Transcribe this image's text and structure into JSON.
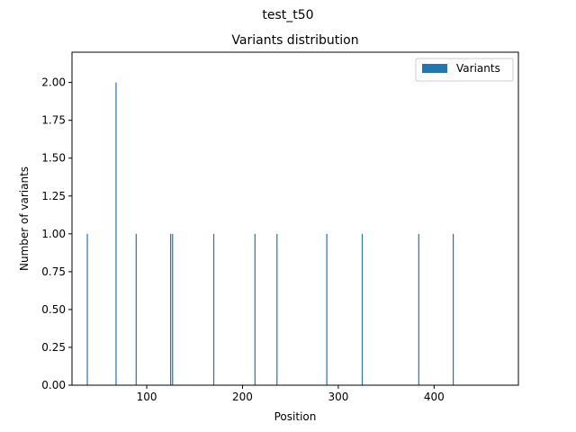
{
  "figure": {
    "suptitle": "test_t50"
  },
  "chart_data": {
    "type": "bar",
    "title": "Variants distribution",
    "xlabel": "Position",
    "ylabel": "Number of variants",
    "xlim": [
      22,
      488
    ],
    "ylim": [
      0,
      2.2
    ],
    "xticks": [
      {
        "value": 100,
        "label": "100"
      },
      {
        "value": 200,
        "label": "200"
      },
      {
        "value": 300,
        "label": "300"
      },
      {
        "value": 400,
        "label": "400"
      }
    ],
    "yticks": [
      {
        "value": 0,
        "label": "0.00"
      },
      {
        "value": 0.25,
        "label": "0.25"
      },
      {
        "value": 0.5,
        "label": "0.50"
      },
      {
        "value": 0.75,
        "label": "0.75"
      },
      {
        "value": 1.0,
        "label": "1.00"
      },
      {
        "value": 1.25,
        "label": "1.25"
      },
      {
        "value": 1.5,
        "label": "1.50"
      },
      {
        "value": 1.75,
        "label": "1.75"
      },
      {
        "value": 2.0,
        "label": "2.00"
      }
    ],
    "grid": false,
    "legend_position": "top-right",
    "series": [
      {
        "name": "Variants",
        "color": "#1f77b4",
        "x": [
          38,
          68,
          89,
          125,
          127,
          170,
          213,
          236,
          288,
          325,
          384,
          420
        ],
        "values": [
          1,
          2,
          1,
          1,
          1,
          1,
          1,
          1,
          1,
          1,
          1,
          1
        ]
      }
    ]
  }
}
